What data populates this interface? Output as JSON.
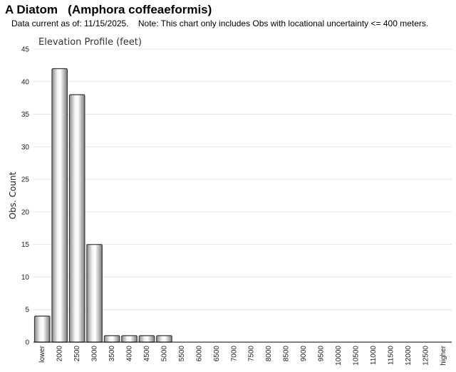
{
  "header": {
    "title": "A Diatom   (Amphora coffeaeformis)",
    "subtitle": "Data current as of: 11/15/2025.    Note: This chart only includes Obs with locational uncertainty <= 400 meters."
  },
  "chart_data": {
    "type": "bar",
    "title": "Elevation Profile (feet)",
    "xlabel": "",
    "ylabel": "Obs. Count",
    "ylim": [
      0,
      45
    ],
    "yticks": [
      0,
      5,
      10,
      15,
      20,
      25,
      30,
      35,
      40,
      45
    ],
    "grid": true,
    "categories": [
      "lower",
      "2000",
      "2500",
      "3000",
      "3500",
      "4000",
      "4500",
      "5000",
      "5500",
      "6000",
      "6500",
      "7000",
      "7500",
      "8000",
      "8500",
      "9000",
      "9500",
      "10000",
      "10500",
      "11000",
      "11500",
      "12000",
      "12500",
      "higher"
    ],
    "values": [
      4,
      42,
      38,
      15,
      1,
      1,
      1,
      1,
      0,
      0,
      0,
      0,
      0,
      0,
      0,
      0,
      0,
      0,
      0,
      0,
      0,
      0,
      0,
      0
    ],
    "colors": {
      "bar_edge": "#3a3a3a",
      "bar_light": "#f2f2f2",
      "bar_dark": "#8a8a8a",
      "grid": "#e3e3e3",
      "axis": "#000000"
    }
  }
}
